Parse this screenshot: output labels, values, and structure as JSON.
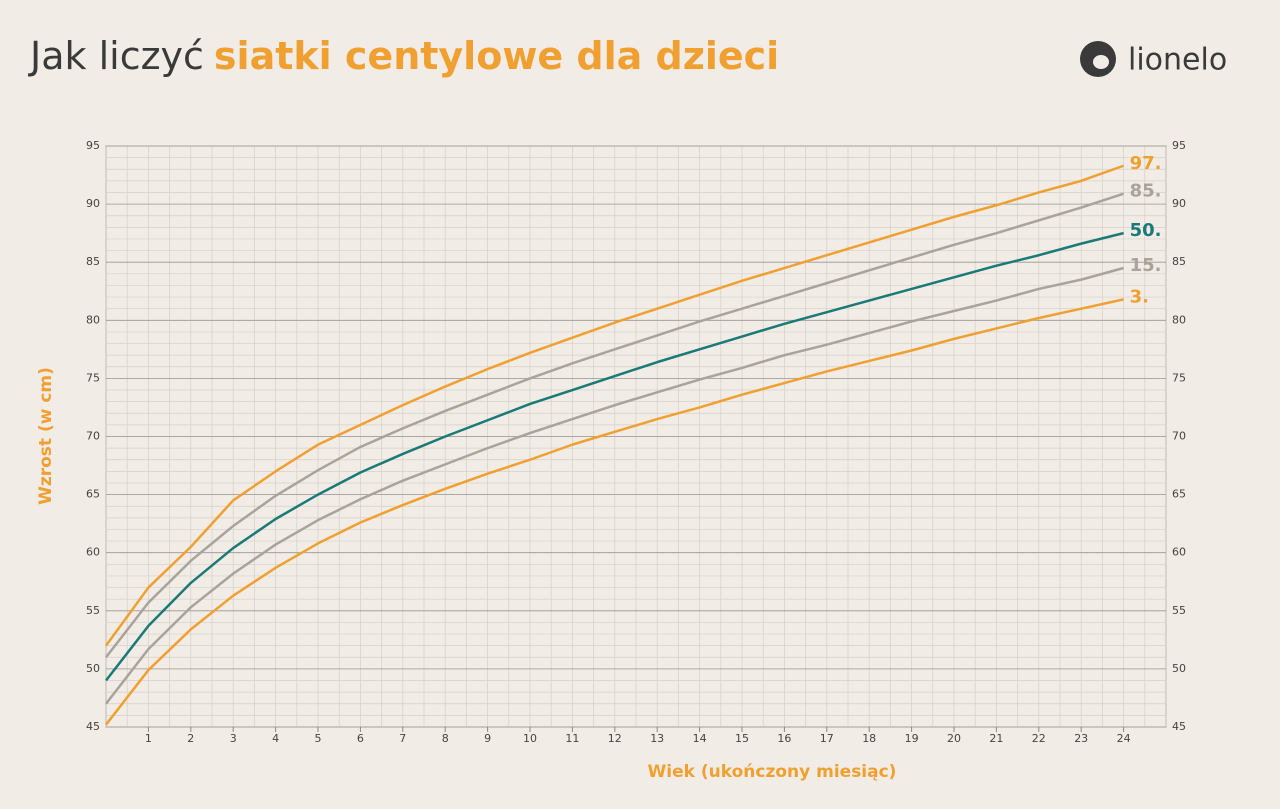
{
  "chart_data": {
    "type": "line",
    "title": "Jak liczyć",
    "title_highlight": "siatki centylowe dla dzieci",
    "brand": "lionelo",
    "x_label": "Wiek (ukończony miesiąc)",
    "y_label": "Wzrost (w cm)",
    "x": [
      0,
      1,
      2,
      3,
      4,
      5,
      6,
      7,
      8,
      9,
      10,
      11,
      12,
      13,
      14,
      15,
      16,
      17,
      18,
      19,
      20,
      21,
      22,
      23,
      24
    ],
    "xlim": [
      0,
      25
    ],
    "xticks": [
      1,
      2,
      3,
      4,
      5,
      6,
      7,
      8,
      9,
      10,
      11,
      12,
      13,
      14,
      15,
      16,
      17,
      18,
      19,
      20,
      21,
      22,
      23,
      24
    ],
    "ylim": [
      45,
      95
    ],
    "yticks": [
      45,
      50,
      55,
      60,
      65,
      70,
      75,
      80,
      85,
      90,
      95
    ],
    "grid": true,
    "series": [
      {
        "name": "97.",
        "color": "#f0a030",
        "values": [
          52,
          57,
          60.5,
          64.5,
          67,
          69.3,
          71,
          72.7,
          74.3,
          75.8,
          77.2,
          78.5,
          79.8,
          81,
          82.2,
          83.4,
          84.5,
          85.6,
          86.7,
          87.8,
          88.9,
          89.9,
          91,
          92,
          93.3
        ]
      },
      {
        "name": "85.",
        "color": "#a9a39b",
        "values": [
          51,
          55.7,
          59.3,
          62.3,
          64.9,
          67.1,
          69.1,
          70.7,
          72.2,
          73.6,
          75,
          76.3,
          77.5,
          78.7,
          79.9,
          81,
          82.1,
          83.2,
          84.3,
          85.4,
          86.5,
          87.5,
          88.6,
          89.7,
          90.9
        ]
      },
      {
        "name": "50.",
        "color": "#1a7a78",
        "values": [
          49,
          53.7,
          57.4,
          60.4,
          62.9,
          65,
          66.9,
          68.5,
          70,
          71.4,
          72.8,
          74,
          75.2,
          76.4,
          77.5,
          78.6,
          79.7,
          80.7,
          81.7,
          82.7,
          83.7,
          84.7,
          85.6,
          86.6,
          87.5
        ]
      },
      {
        "name": "15.",
        "color": "#a9a39b",
        "values": [
          47,
          51.7,
          55.3,
          58.2,
          60.7,
          62.8,
          64.6,
          66.2,
          67.6,
          69,
          70.3,
          71.5,
          72.7,
          73.8,
          74.9,
          75.9,
          77,
          77.9,
          78.9,
          79.9,
          80.8,
          81.7,
          82.7,
          83.5,
          84.5
        ]
      },
      {
        "name": "3.",
        "color": "#f0a030",
        "values": [
          45.2,
          49.9,
          53.4,
          56.3,
          58.7,
          60.8,
          62.6,
          64.1,
          65.5,
          66.8,
          68,
          69.3,
          70.4,
          71.5,
          72.5,
          73.6,
          74.6,
          75.6,
          76.5,
          77.4,
          78.4,
          79.3,
          80.2,
          81,
          81.8
        ]
      }
    ]
  }
}
